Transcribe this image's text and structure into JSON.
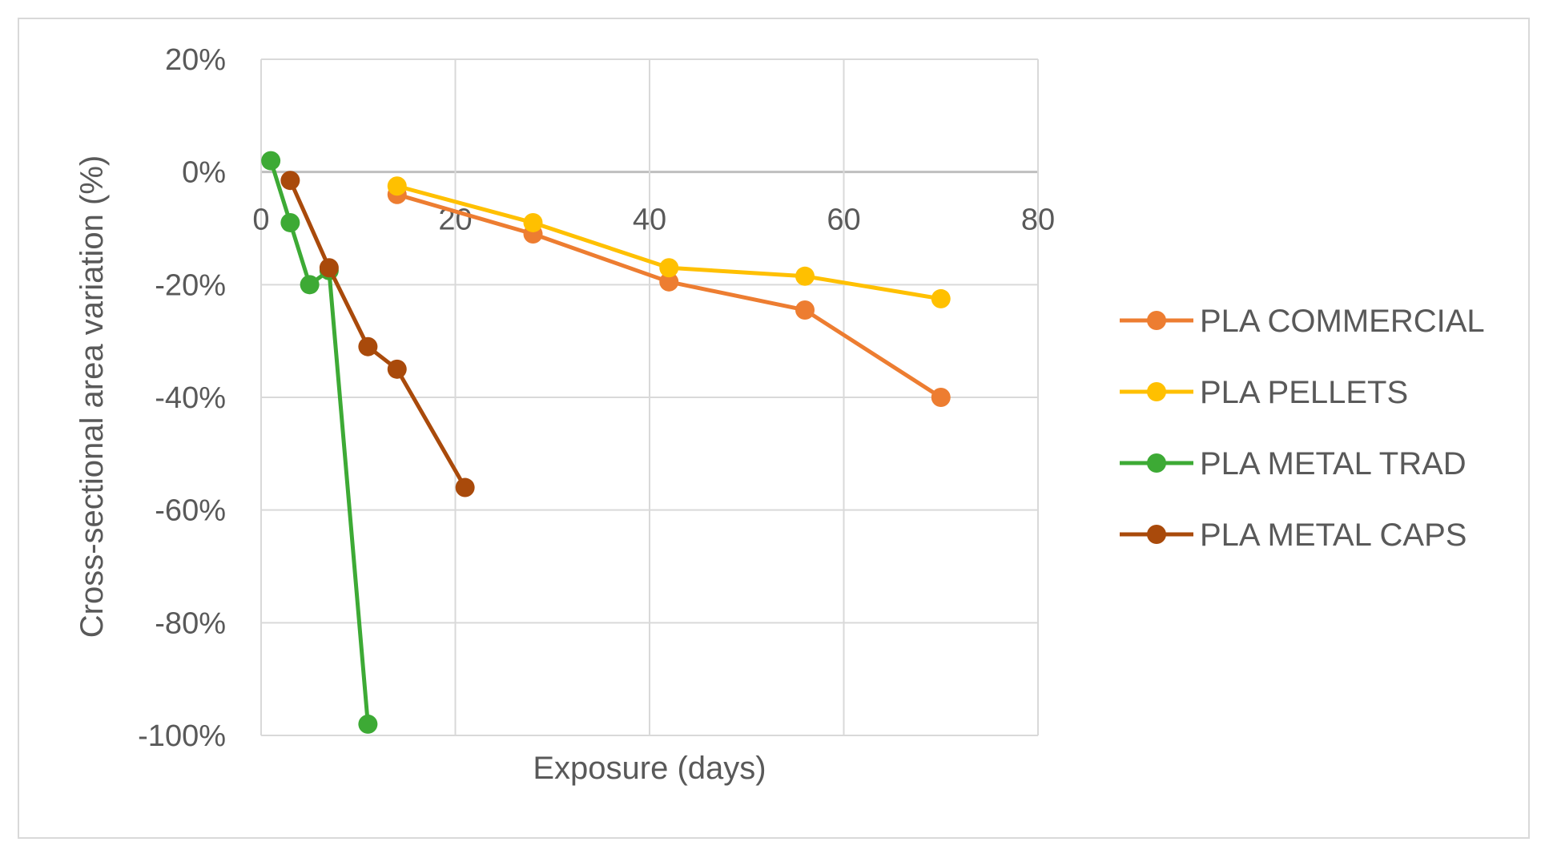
{
  "chart_data": {
    "type": "line",
    "title": "",
    "xlabel": "Exposure (days)",
    "ylabel": "Cross-sectional area variation (%)",
    "xlim": [
      0,
      80
    ],
    "ylim": [
      -100,
      20
    ],
    "x_ticks": [
      0,
      20,
      40,
      60,
      80
    ],
    "y_ticks": [
      20,
      0,
      -20,
      -40,
      -60,
      -80,
      -100
    ],
    "x_tick_labels": [
      "0",
      "20",
      "40",
      "60",
      "80"
    ],
    "y_tick_labels": [
      "20%",
      "0%",
      "-20%",
      "-40%",
      "-60%",
      "-80%",
      "-100%"
    ],
    "grid": true,
    "legend_position": "right",
    "series": [
      {
        "name": "PLA COMMERCIAL",
        "color": "#ED7D31",
        "x": [
          14,
          28,
          42,
          56,
          70
        ],
        "y": [
          -4,
          -11,
          -19.5,
          -24.5,
          -40
        ]
      },
      {
        "name": "PLA PELLETS",
        "color": "#FFC000",
        "x": [
          14,
          28,
          42,
          56,
          70
        ],
        "y": [
          -2.5,
          -9,
          -17,
          -18.5,
          -22.5
        ]
      },
      {
        "name": "PLA METAL TRAD",
        "color": "#3DAA35",
        "x": [
          1,
          3,
          5,
          7,
          11
        ],
        "y": [
          2,
          -9,
          -20,
          -17.5,
          -98
        ]
      },
      {
        "name": "PLA METAL CAPS",
        "color": "#A94A0B",
        "x": [
          3,
          7,
          11,
          14,
          21
        ],
        "y": [
          -1.5,
          -17,
          -31,
          -35,
          -56
        ]
      }
    ]
  }
}
